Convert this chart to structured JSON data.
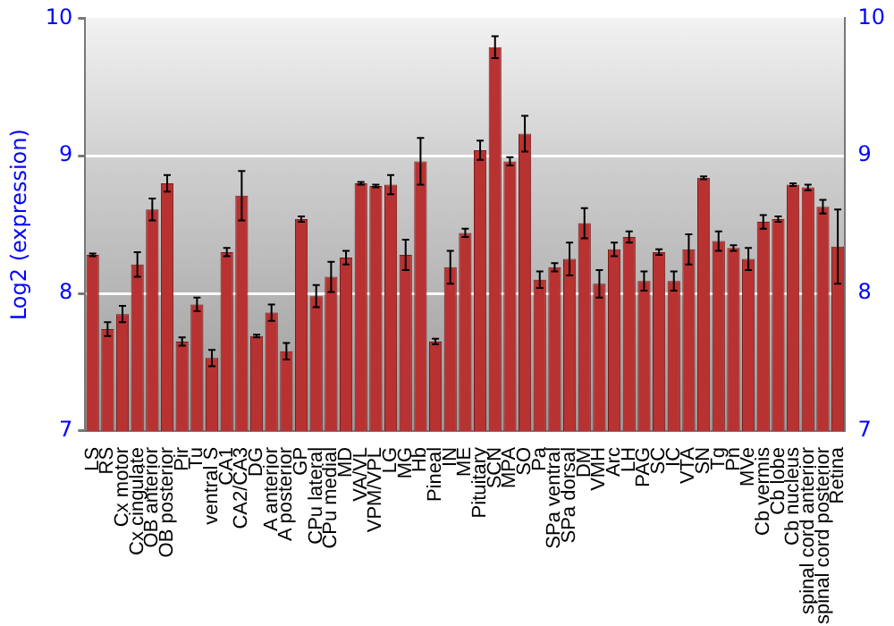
{
  "chart_data": {
    "type": "bar",
    "ylabel": "Log2 (expression)",
    "categories": [
      "LS",
      "RS",
      "Cx motor",
      "Cx cingulate",
      "OB anterior",
      "OB posterior",
      "Pir",
      "Tu",
      "ventral S",
      "CA1",
      "CA2/CA3",
      "DG",
      "A anterior",
      "A posterior",
      "GP",
      "CPu lateral",
      "CPu medial",
      "MD",
      "VA/VL",
      "VPM/VPL",
      "LG",
      "MG",
      "Hb",
      "Pineal",
      "IN",
      "ME",
      "Pituitary",
      "SCN",
      "MPA",
      "SO",
      "Pa",
      "SPa ventral",
      "SPa dorsal",
      "DM",
      "VMH",
      "Arc",
      "LH",
      "PAG",
      "SC",
      "IC",
      "VTA",
      "SN",
      "Tg",
      "Pn",
      "MVe",
      "Cb vermis",
      "Cb lobe",
      "Cb nucleus",
      "spinal cord anterior",
      "spinal cord posterior",
      "Retina"
    ],
    "values": [
      8.28,
      7.74,
      7.85,
      8.21,
      8.61,
      8.8,
      7.65,
      7.92,
      7.53,
      8.3,
      8.71,
      7.69,
      7.86,
      7.58,
      8.54,
      7.98,
      8.12,
      8.26,
      8.8,
      8.78,
      8.79,
      8.28,
      8.96,
      7.65,
      8.19,
      8.44,
      9.04,
      9.79,
      8.96,
      9.16,
      8.1,
      8.19,
      8.25,
      8.51,
      8.07,
      8.32,
      8.41,
      8.09,
      8.3,
      8.09,
      8.32,
      8.84,
      8.38,
      8.33,
      8.25,
      8.52,
      8.54,
      8.79,
      8.77,
      8.63,
      8.34
    ],
    "errors": [
      0.01,
      0.05,
      0.06,
      0.09,
      0.08,
      0.06,
      0.03,
      0.05,
      0.06,
      0.03,
      0.18,
      0.01,
      0.06,
      0.06,
      0.02,
      0.08,
      0.11,
      0.05,
      0.01,
      0.01,
      0.07,
      0.11,
      0.17,
      0.02,
      0.12,
      0.03,
      0.07,
      0.08,
      0.03,
      0.13,
      0.06,
      0.03,
      0.12,
      0.11,
      0.1,
      0.05,
      0.04,
      0.07,
      0.02,
      0.07,
      0.11,
      0.01,
      0.07,
      0.02,
      0.08,
      0.05,
      0.02,
      0.01,
      0.02,
      0.05,
      0.27
    ],
    "color": "#b83232",
    "ylim": [
      7,
      10
    ],
    "yticks": [
      7,
      8,
      9,
      10
    ],
    "y2lim": [
      7,
      10
    ],
    "y2ticks": [
      7,
      8,
      9,
      10
    ],
    "grid": "y",
    "legend": false
  }
}
